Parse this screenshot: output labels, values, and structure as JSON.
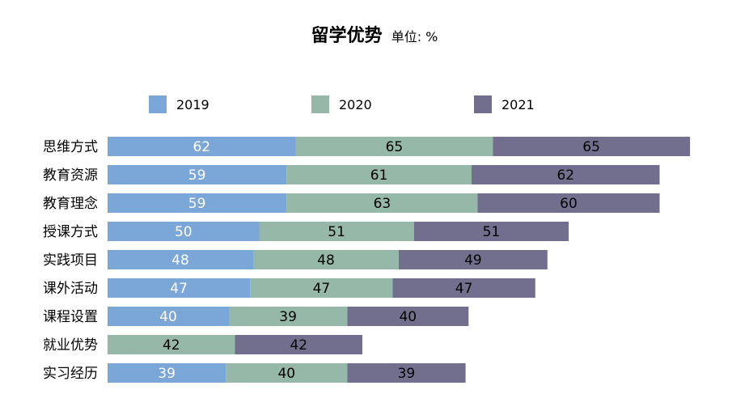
{
  "chart_data": {
    "type": "bar",
    "orientation": "horizontal",
    "stacked": true,
    "title": "留学优势",
    "unit": "单位: %",
    "categories": [
      "思维方式",
      "教育资源",
      "教育理念",
      "授课方式",
      "实践项目",
      "课外活动",
      "课程设置",
      "就业优势",
      "实习经历"
    ],
    "series": [
      {
        "name": "2019",
        "color": "#7ba7d8",
        "label_color": "#ffffff",
        "values": [
          62,
          59,
          59,
          50,
          48,
          47,
          40,
          null,
          39
        ]
      },
      {
        "name": "2020",
        "color": "#95b8a8",
        "label_color": "#000000",
        "values": [
          65,
          61,
          63,
          51,
          48,
          47,
          39,
          42,
          40
        ]
      },
      {
        "name": "2021",
        "color": "#726f8e",
        "label_color": "#000000",
        "values": [
          65,
          62,
          60,
          51,
          49,
          47,
          40,
          42,
          39
        ]
      }
    ],
    "legend_position": "top",
    "grid": false
  }
}
